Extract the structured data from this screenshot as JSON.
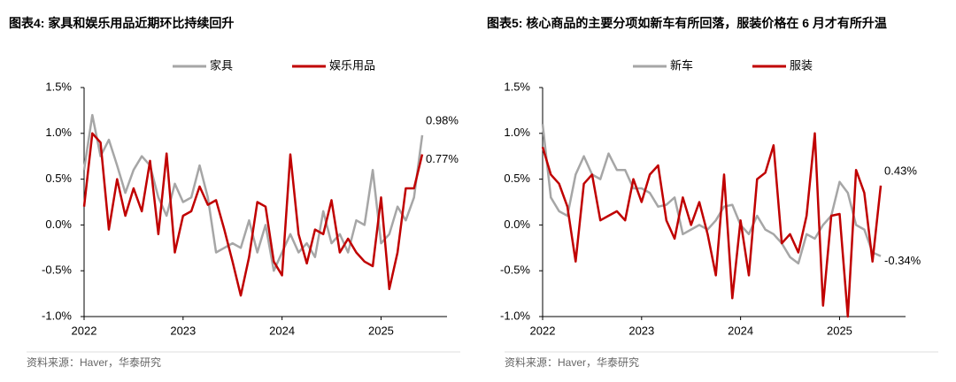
{
  "chart_data": [
    {
      "type": "line",
      "title": "图表4:  家具和娱乐用品近期环比持续回升",
      "source": "资料来源：Haver，华泰研究",
      "categories": [
        "2022",
        null,
        null,
        null,
        null,
        null,
        null,
        null,
        null,
        null,
        null,
        null,
        "2023",
        null,
        null,
        null,
        null,
        null,
        null,
        null,
        null,
        null,
        null,
        null,
        "2024",
        null,
        null,
        null,
        null,
        null,
        null,
        null,
        null,
        null,
        null,
        null,
        "2025",
        null,
        null,
        null,
        null,
        null
      ],
      "series": [
        {
          "name": "家具",
          "color": "#a6a6a6",
          "last_label": "0.98%",
          "values": [
            0.6,
            1.2,
            0.75,
            0.93,
            0.65,
            0.35,
            0.6,
            0.75,
            0.65,
            0.3,
            0.1,
            0.45,
            0.25,
            0.3,
            0.65,
            0.3,
            -0.3,
            -0.25,
            -0.2,
            -0.25,
            0.05,
            -0.3,
            0.0,
            -0.5,
            -0.3,
            -0.1,
            -0.3,
            -0.2,
            -0.35,
            0.15,
            -0.2,
            -0.1,
            -0.3,
            0.05,
            0.0,
            0.6,
            -0.2,
            -0.1,
            0.2,
            0.05,
            0.3,
            0.98
          ]
        },
        {
          "name": "娱乐用品",
          "color": "#c00000",
          "last_label": "0.77%",
          "values": [
            0.2,
            1.0,
            0.9,
            -0.05,
            0.5,
            0.1,
            0.4,
            0.15,
            0.7,
            -0.1,
            0.78,
            -0.3,
            0.1,
            0.15,
            0.42,
            0.22,
            0.27,
            -0.05,
            -0.4,
            -0.77,
            -0.35,
            0.25,
            0.2,
            -0.4,
            -0.55,
            0.77,
            -0.1,
            -0.42,
            -0.05,
            -0.1,
            0.27,
            -0.3,
            -0.15,
            -0.3,
            -0.4,
            -0.45,
            0.3,
            -0.7,
            -0.3,
            0.4,
            0.4,
            0.77
          ]
        }
      ],
      "ylim": [
        -1.0,
        1.5
      ],
      "yticks": [
        {
          "value": 1.5,
          "label": "1.5%"
        },
        {
          "value": 1.0,
          "label": "1.0%"
        },
        {
          "value": 0.5,
          "label": "0.5%"
        },
        {
          "value": 0.0,
          "label": "0.0%"
        },
        {
          "value": -0.5,
          "label": "-0.5%"
        },
        {
          "value": -1.0,
          "label": "-1.0%"
        }
      ],
      "grid": false,
      "legend": "top"
    },
    {
      "type": "line",
      "title": "图表5:  核心商品的主要分项如新车有所回落，服装价格在 6 月才有所升温",
      "source": "资料来源：Haver，华泰研究",
      "categories": [
        "2022",
        null,
        null,
        null,
        null,
        null,
        null,
        null,
        null,
        null,
        null,
        null,
        "2023",
        null,
        null,
        null,
        null,
        null,
        null,
        null,
        null,
        null,
        null,
        null,
        "2024",
        null,
        null,
        null,
        null,
        null,
        null,
        null,
        null,
        null,
        null,
        null,
        "2025",
        null,
        null,
        null,
        null,
        null
      ],
      "series": [
        {
          "name": "新车",
          "color": "#a6a6a6",
          "last_label": "-0.34%",
          "values": [
            1.1,
            0.3,
            0.15,
            0.1,
            0.55,
            0.75,
            0.55,
            0.5,
            0.78,
            0.6,
            0.6,
            0.4,
            0.4,
            0.35,
            0.2,
            0.22,
            0.3,
            -0.1,
            -0.05,
            0.0,
            -0.05,
            0.05,
            0.2,
            0.22,
            0.0,
            -0.1,
            0.1,
            -0.05,
            -0.1,
            -0.2,
            -0.35,
            -0.42,
            -0.1,
            -0.15,
            0.0,
            0.1,
            0.47,
            0.35,
            0.0,
            -0.05,
            -0.3,
            -0.34
          ]
        },
        {
          "name": "服装",
          "color": "#c00000",
          "last_label": "0.43%",
          "values": [
            0.85,
            0.55,
            0.45,
            0.2,
            -0.4,
            0.45,
            0.55,
            0.05,
            0.1,
            0.15,
            0.05,
            0.5,
            0.25,
            0.55,
            0.65,
            0.05,
            -0.15,
            0.3,
            0.0,
            0.25,
            -0.1,
            -0.55,
            0.55,
            -0.8,
            0.05,
            -0.55,
            0.5,
            0.57,
            0.87,
            -0.2,
            -0.1,
            -0.3,
            0.1,
            1.0,
            -0.88,
            0.1,
            0.12,
            -1.0,
            0.6,
            0.35,
            -0.4,
            0.43
          ]
        }
      ],
      "ylim": [
        -1.0,
        1.5
      ],
      "yticks": [
        {
          "value": 1.5,
          "label": "1.5%"
        },
        {
          "value": 1.0,
          "label": "1.0%"
        },
        {
          "value": 0.5,
          "label": "0.5%"
        },
        {
          "value": 0.0,
          "label": "0.0%"
        },
        {
          "value": -0.5,
          "label": "-0.5%"
        },
        {
          "value": -1.0,
          "label": "-1.0%"
        }
      ],
      "grid": false,
      "legend": "top"
    }
  ]
}
